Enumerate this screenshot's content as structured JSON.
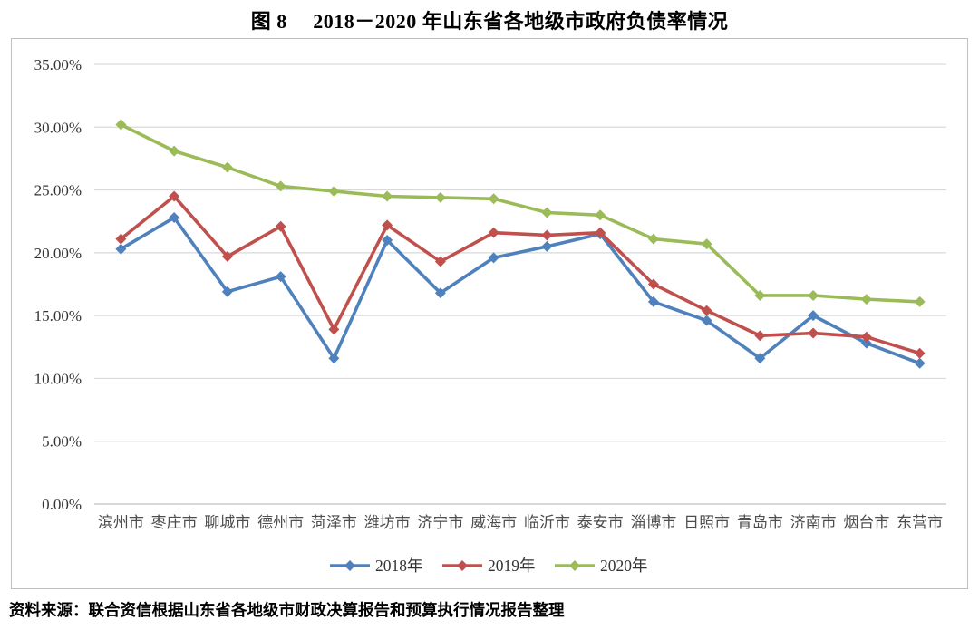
{
  "figure": {
    "title": "图 8　 2018－2020 年山东省各地级市政府负债率情况",
    "source": "资料来源：联合资信根据山东省各地级市财政决算报告和预算执行情况报告整理"
  },
  "chart_data": {
    "type": "line",
    "title": "2018-2020 年山东省各地级市政府负债率情况",
    "categories": [
      "滨州市",
      "枣庄市",
      "聊城市",
      "德州市",
      "菏泽市",
      "潍坊市",
      "济宁市",
      "威海市",
      "临沂市",
      "泰安市",
      "淄博市",
      "日照市",
      "青岛市",
      "济南市",
      "烟台市",
      "东营市"
    ],
    "series": [
      {
        "name": "2018年",
        "color": "#4F81BD",
        "marker": "diamond",
        "values": [
          20.3,
          22.8,
          16.9,
          18.1,
          11.6,
          21.0,
          16.8,
          19.6,
          20.5,
          21.5,
          16.1,
          14.6,
          11.6,
          15.0,
          12.8,
          11.2
        ]
      },
      {
        "name": "2019年",
        "color": "#C0504D",
        "marker": "diamond",
        "values": [
          21.1,
          24.5,
          19.7,
          22.1,
          13.9,
          22.2,
          19.3,
          21.6,
          21.4,
          21.6,
          17.5,
          15.4,
          13.4,
          13.6,
          13.3,
          12.0
        ]
      },
      {
        "name": "2020年",
        "color": "#9BBB59",
        "marker": "diamond",
        "values": [
          30.2,
          28.1,
          26.8,
          25.3,
          24.9,
          24.5,
          24.4,
          24.3,
          23.2,
          23.0,
          21.1,
          20.7,
          16.6,
          16.6,
          16.3,
          16.1
        ]
      }
    ],
    "y_ticks": [
      "0.00%",
      "5.00%",
      "10.00%",
      "15.00%",
      "20.00%",
      "25.00%",
      "30.00%",
      "35.00%"
    ],
    "ylim": [
      0,
      35
    ],
    "y_step": 5,
    "unit": "%",
    "grid": "horizontal",
    "legend_position": "bottom",
    "colors": {
      "grid": "#D9D9D9",
      "axis": "#BFBFBF",
      "frame": "#BFBFBF",
      "y_tick_label": "#333333",
      "category_label": "#4D4D4D",
      "legend_label": "#333333"
    }
  }
}
